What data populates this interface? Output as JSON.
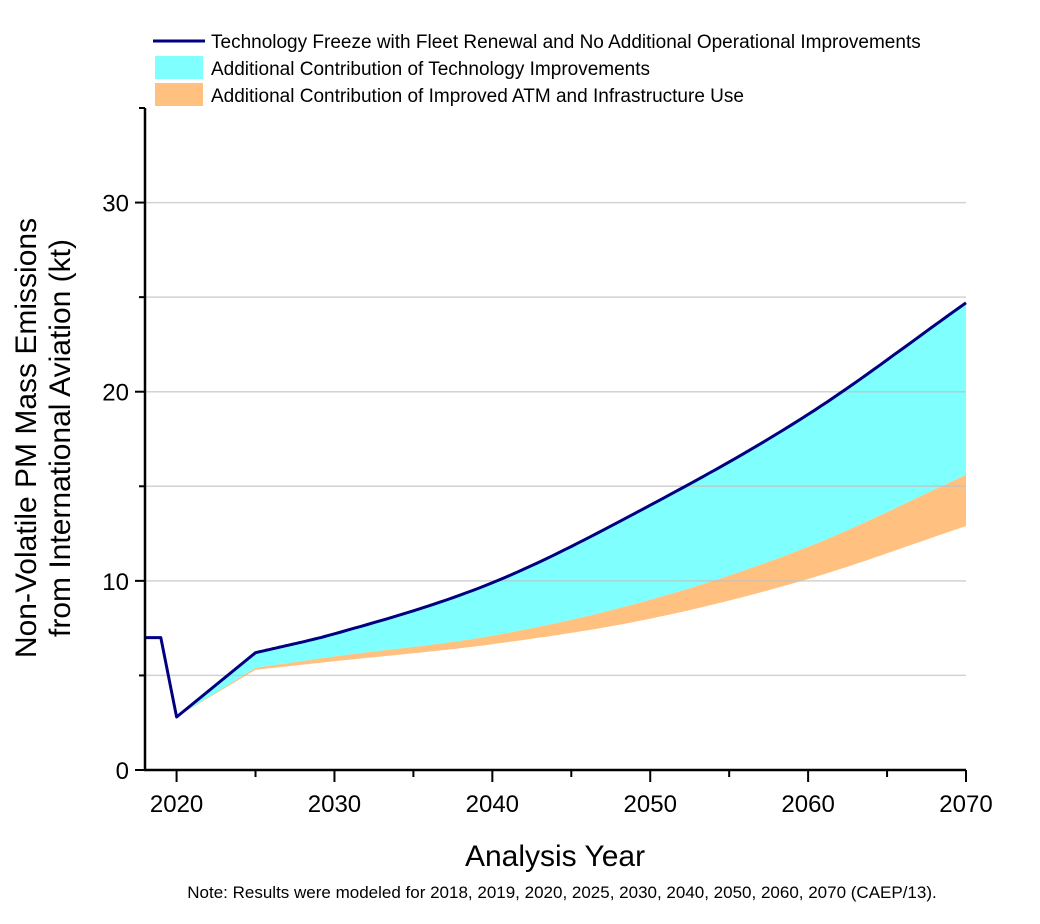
{
  "chart_data": {
    "type": "area",
    "title": "",
    "xlabel": "Analysis Year",
    "ylabel_lines": [
      "Non-Volatile PM Mass Emissions",
      "from International Aviation (kt)"
    ],
    "note": "Note: Results were modeled for 2018, 2019, 2020, 2025, 2030, 2040, 2050, 2060, 2070 (CAEP/13).",
    "xlim": [
      2018,
      2070
    ],
    "ylim": [
      0,
      35
    ],
    "x_ticks": [
      2020,
      2030,
      2040,
      2050,
      2060,
      2070
    ],
    "x_tick_labels": [
      "2020",
      "2030",
      "2040",
      "2050",
      "2060",
      "2070"
    ],
    "x_minor_ticks": [
      2025,
      2035,
      2045,
      2055,
      2065
    ],
    "y_ticks": [
      0,
      10,
      20,
      30
    ],
    "y_tick_labels": [
      "0",
      "10",
      "20",
      "30"
    ],
    "y_minor_ticks": [
      5,
      15,
      25,
      35
    ],
    "grid": true,
    "grid_values": [
      5,
      10,
      15,
      20,
      25,
      30
    ],
    "legend_position": "top",
    "legend": [
      {
        "label": "Technology Freeze with Fleet Renewal and No Additional Operational Improvements",
        "kind": "line",
        "color": "#000080"
      },
      {
        "label": "Additional Contribution of Technology Improvements",
        "kind": "fill",
        "color": "#80FFFF"
      },
      {
        "label": "Additional Contribution of Improved ATM and Infrastructure Use",
        "kind": "fill",
        "color": "#FFC080"
      }
    ],
    "series": [
      {
        "name": "Technology Freeze with Fleet Renewal and No Additional Operational Improvements",
        "x": [
          2018,
          2019,
          2020,
          2025,
          2030,
          2040,
          2050,
          2060,
          2070
        ],
        "values": [
          7.0,
          7.0,
          2.8,
          6.2,
          7.2,
          9.9,
          14.0,
          18.8,
          24.7
        ]
      },
      {
        "name": "With Technology Improvements (lower edge of cyan band)",
        "x": [
          2020,
          2025,
          2030,
          2040,
          2050,
          2060,
          2070
        ],
        "values": [
          2.8,
          5.4,
          6.0,
          7.1,
          9.0,
          11.8,
          15.6
        ]
      },
      {
        "name": "With Technology and Improved ATM/Infrastructure (lower edge of orange band)",
        "x": [
          2020,
          2025,
          2030,
          2040,
          2050,
          2060,
          2070
        ],
        "values": [
          2.8,
          5.3,
          5.75,
          6.65,
          8.0,
          10.1,
          12.9
        ]
      }
    ],
    "colors": {
      "line": "#000080",
      "tech_band": "#80FFFF",
      "atm_band": "#FFC080",
      "grid": "#CCCCCC",
      "axis": "#000000"
    }
  }
}
